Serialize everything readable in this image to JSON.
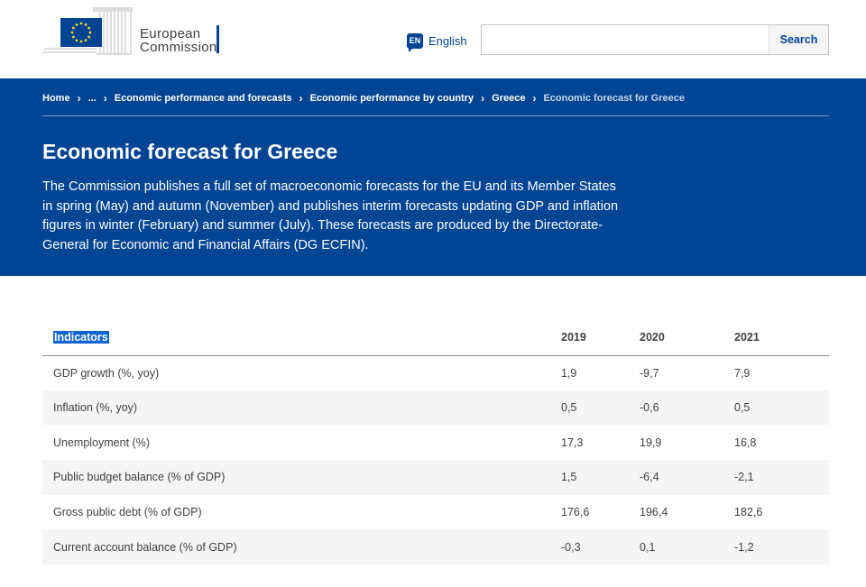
{
  "header": {
    "logo_line1": "European",
    "logo_line2": "Commission",
    "language_code": "EN",
    "language_label": "English",
    "search_placeholder": "",
    "search_button": "Search"
  },
  "breadcrumb": {
    "items": [
      "Home",
      "...",
      "Economic performance and forecasts",
      "Economic performance by country",
      "Greece"
    ],
    "current": "Economic forecast for Greece"
  },
  "page": {
    "title": "Economic forecast for Greece",
    "intro": "The Commission publishes a full set of macroeconomic forecasts for the EU and its Member States in spring (May) and autumn (November) and publishes interim forecasts updating GDP and inflation figures in winter (February) and summer (July). These forecasts are produced by the Directorate-General for Economic and Financial Affairs (DG ECFIN)."
  },
  "table": {
    "headers": [
      "Indicators",
      "2019",
      "2020",
      "2021"
    ],
    "rows": [
      [
        "GDP growth (%, yoy)",
        "1,9",
        "-9,7",
        "7,9"
      ],
      [
        "Inflation (%, yoy)",
        "0,5",
        "-0,6",
        "0,5"
      ],
      [
        "Unemployment (%)",
        "17,3",
        "19,9",
        "16,8"
      ],
      [
        "Public budget balance (% of GDP)",
        "1,5",
        "-6,4",
        "-2,1"
      ],
      [
        "Gross public debt (% of GDP)",
        "176,6",
        "196,4",
        "182,6"
      ],
      [
        "Current account balance (% of GDP)",
        "-0,3",
        "0,1",
        "-1,2"
      ]
    ]
  },
  "colors": {
    "brand_blue": "#004494",
    "eu_yellow": "#ffd617",
    "selection_blue": "#0e63d0"
  }
}
